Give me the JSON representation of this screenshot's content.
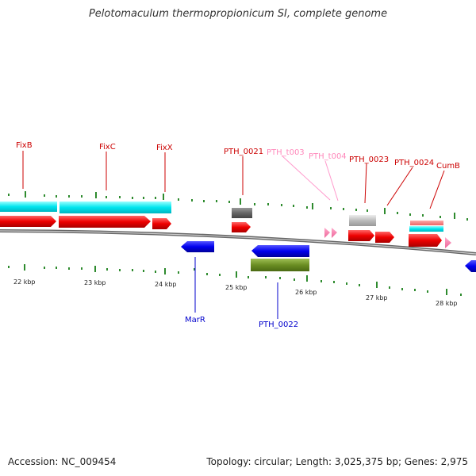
{
  "title": "Pelotomaculum thermopropionicum SI, complete genome",
  "footer": {
    "accession": "Accession: NC_009454",
    "topology": "Topology: circular; Length: 3,025,375 bp; Genes: 2,975"
  },
  "colors": {
    "forward_cds": "#ff0000",
    "reverse_cds": "#0000ff",
    "cyan_feature": "#00e5ee",
    "olive_feature": "#6b8e23",
    "trna": "#ff99cc",
    "gray_feature": "#999999",
    "tick": "#2e8b2e",
    "backbone": "#888888"
  },
  "scale_labels": [
    "22 kbp",
    "23 kbp",
    "24 kbp",
    "25 kbp",
    "26 kbp",
    "27 kbp",
    "28 kbp"
  ],
  "labels": {
    "fixb": "FixB",
    "fixc": "FixC",
    "fixx": "FixX",
    "pth_0021": "PTH_0021",
    "pth_t003": "PTH_t003",
    "pth_t004": "PTH_t004",
    "pth_0023": "PTH_0023",
    "pth_0024": "PTH_0024",
    "cumb": "CumB",
    "marr": "MarR",
    "pth_0022": "PTH_0022"
  }
}
